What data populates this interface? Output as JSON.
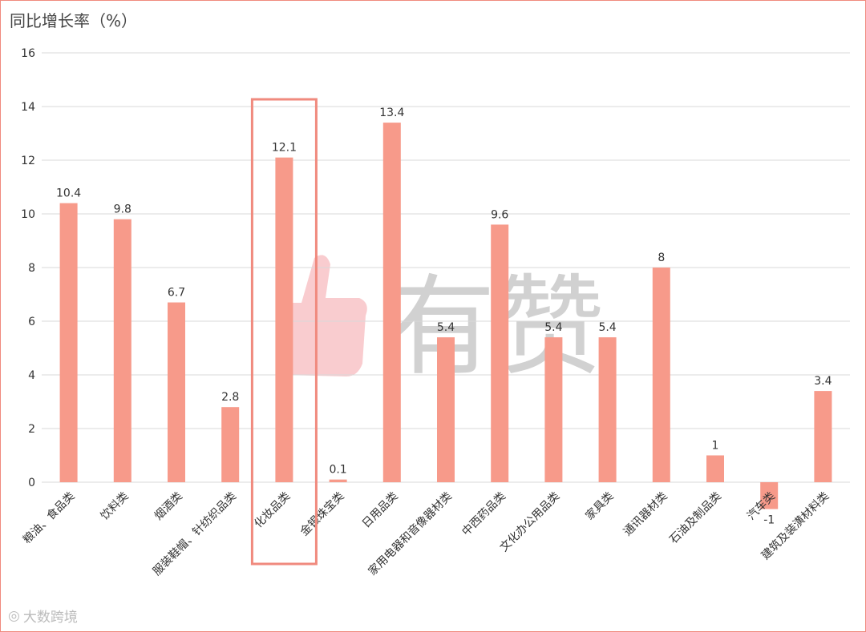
{
  "chart_data": {
    "type": "bar",
    "ylabel": "同比增长率（%）",
    "ylim": [
      -1,
      16
    ],
    "yticks": [
      0,
      2,
      4,
      6,
      8,
      10,
      12,
      14,
      16
    ],
    "grid": true,
    "categories": [
      "粮油、食品类",
      "饮料类",
      "烟酒类",
      "服装鞋帽、针纺织品类",
      "化妆品类",
      "金银珠宝类",
      "日用品类",
      "家用电器和音像器材类",
      "中西药品类",
      "文化办公用品类",
      "家具类",
      "通讯器材类",
      "石油及制品类",
      "汽车类",
      "建筑及装潢材料类"
    ],
    "values": [
      10.4,
      9.8,
      6.7,
      2.8,
      12.1,
      0.1,
      13.4,
      5.4,
      9.6,
      5.4,
      5.4,
      8,
      1,
      -1,
      3.4
    ],
    "data_labels": [
      "10.4",
      "9.8",
      "6.7",
      "2.8",
      "12.1",
      "0.1",
      "13.4",
      "5.4",
      "9.6",
      "5.4",
      "5.4",
      "8",
      "1",
      "-1",
      "3.4"
    ],
    "highlighted_category": "化妆品类",
    "bar_color": "#f79a8a",
    "highlight_color": "#f08a7e"
  },
  "watermark": {
    "text": "有赞"
  },
  "footer": {
    "text": "大数跨境"
  }
}
